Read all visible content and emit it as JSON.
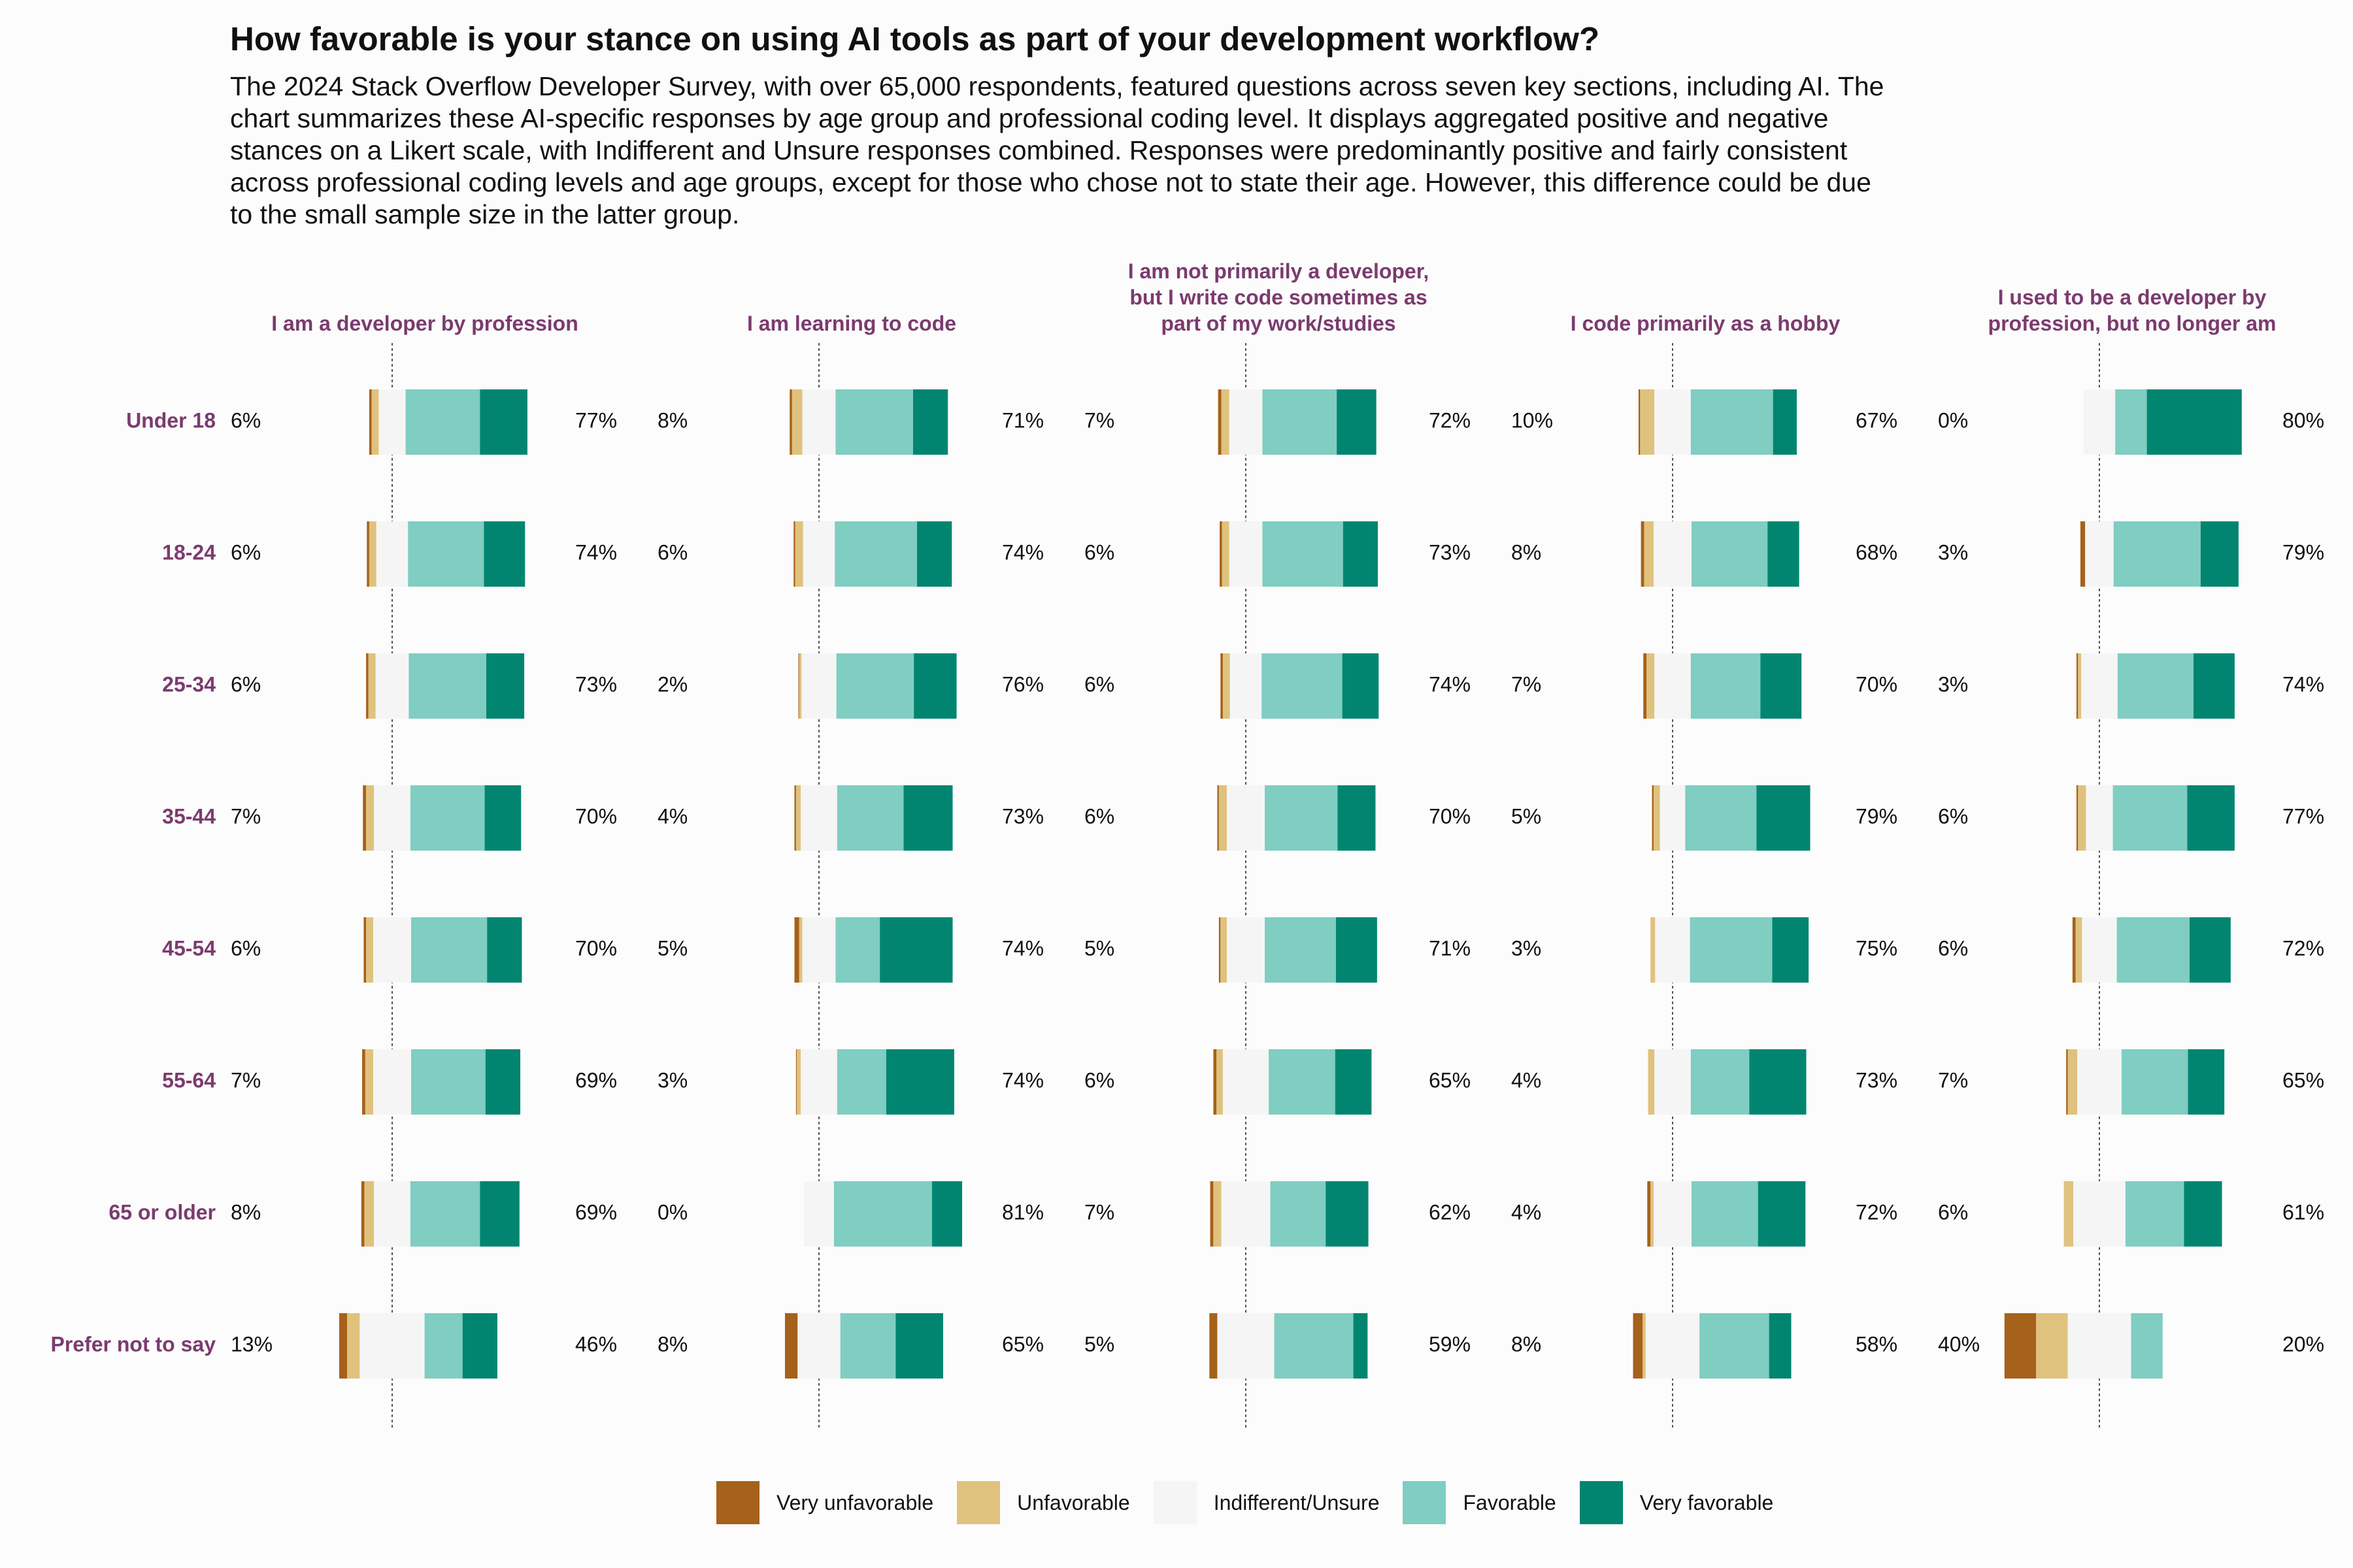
{
  "title": "How favorable is your stance on using AI tools as part of your development workflow?",
  "subtitle_lines": [
    "The 2024 Stack Overflow Developer Survey, with over 65,000 respondents, featured questions across seven key sections, including AI. The",
    "chart summarizes these AI-specific responses by age group and professional coding level. It displays aggregated positive and negative",
    "stances on a Likert scale, with Indifferent and Unsure responses combined. Responses were predominantly positive and fairly consistent",
    "across professional coding levels and age groups, except for those who chose not to state their age. However, this difference could be due",
    "to the small sample size in the latter group."
  ],
  "legend": [
    {
      "label": "Very unfavorable",
      "color": "#a6611a"
    },
    {
      "label": "Unfavorable",
      "color": "#dfc27d"
    },
    {
      "label": "Indifferent/Unsure",
      "color": "#f5f5f5"
    },
    {
      "label": "Favorable",
      "color": "#80cdc1"
    },
    {
      "label": "Very favorable",
      "color": "#018571"
    }
  ],
  "chart_data": {
    "type": "bar",
    "subtype": "diverging-stacked-likert",
    "facets": [
      "I am a developer by profession",
      "I am learning to code",
      "I am not primarily a developer,\nbut I write code sometimes as\npart of my work/studies",
      "I code primarily as a hobby",
      "I used to be a developer by\nprofession, but no longer am"
    ],
    "categories": [
      "Under 18",
      "18-24",
      "25-34",
      "35-44",
      "45-54",
      "55-64",
      "65 or older",
      "Prefer not to say"
    ],
    "series_order": [
      "Very unfavorable",
      "Unfavorable",
      "Indifferent/Unsure",
      "Favorable",
      "Very favorable"
    ],
    "data": [
      [
        {
          "neg": "6%",
          "pos": "77%",
          "values": [
            1.5,
            4.5,
            17,
            47,
            30
          ]
        },
        {
          "neg": "6%",
          "pos": "74%",
          "values": [
            1.5,
            4.5,
            20,
            48,
            26
          ]
        },
        {
          "neg": "6%",
          "pos": "73%",
          "values": [
            1.5,
            4.5,
            21,
            49,
            24
          ]
        },
        {
          "neg": "7%",
          "pos": "70%",
          "values": [
            2,
            5,
            23,
            47,
            23
          ]
        },
        {
          "neg": "6%",
          "pos": "70%",
          "values": [
            1.5,
            4.5,
            24,
            48,
            22
          ]
        },
        {
          "neg": "7%",
          "pos": "69%",
          "values": [
            2,
            5,
            24,
            47,
            22
          ]
        },
        {
          "neg": "8%",
          "pos": "69%",
          "values": [
            2,
            6,
            23,
            44,
            25
          ]
        },
        {
          "neg": "13%",
          "pos": "46%",
          "values": [
            5,
            8,
            41,
            24,
            22
          ]
        }
      ],
      [
        {
          "neg": "8%",
          "pos": "71%",
          "values": [
            1.5,
            6.5,
            21,
            49,
            22
          ]
        },
        {
          "neg": "6%",
          "pos": "74%",
          "values": [
            1,
            5,
            20,
            52,
            22
          ]
        },
        {
          "neg": "2%",
          "pos": "76%",
          "values": [
            0.5,
            1.5,
            22,
            49,
            27
          ]
        },
        {
          "neg": "4%",
          "pos": "73%",
          "values": [
            1,
            3,
            23,
            42,
            31
          ]
        },
        {
          "neg": "5%",
          "pos": "74%",
          "values": [
            3,
            2,
            21,
            28,
            46
          ]
        },
        {
          "neg": "3%",
          "pos": "74%",
          "values": [
            0.5,
            2.5,
            23,
            31,
            43
          ]
        },
        {
          "neg": "0%",
          "pos": "81%",
          "values": [
            0,
            0,
            19,
            62,
            19
          ]
        },
        {
          "neg": "8%",
          "pos": "65%",
          "values": [
            8,
            0,
            27,
            35,
            30
          ]
        }
      ],
      [
        {
          "neg": "7%",
          "pos": "72%",
          "values": [
            2,
            5,
            21,
            47,
            25
          ]
        },
        {
          "neg": "6%",
          "pos": "73%",
          "values": [
            1.5,
            4.5,
            21,
            51,
            22
          ]
        },
        {
          "neg": "6%",
          "pos": "74%",
          "values": [
            1.5,
            4.5,
            20,
            51,
            23
          ]
        },
        {
          "neg": "6%",
          "pos": "70%",
          "values": [
            1,
            5,
            24,
            46,
            24
          ]
        },
        {
          "neg": "5%",
          "pos": "71%",
          "values": [
            1,
            4,
            24,
            45,
            26
          ]
        },
        {
          "neg": "6%",
          "pos": "65%",
          "values": [
            2,
            4,
            29,
            42,
            23
          ]
        },
        {
          "neg": "7%",
          "pos": "62%",
          "values": [
            2,
            5,
            31,
            35,
            27
          ]
        },
        {
          "neg": "5%",
          "pos": "59%",
          "values": [
            5,
            0,
            36,
            50,
            9
          ]
        }
      ],
      [
        {
          "neg": "10%",
          "pos": "67%",
          "values": [
            1,
            9,
            23,
            52,
            15
          ]
        },
        {
          "neg": "8%",
          "pos": "68%",
          "values": [
            2,
            6,
            24,
            48,
            20
          ]
        },
        {
          "neg": "7%",
          "pos": "70%",
          "values": [
            2,
            5,
            23,
            44,
            26
          ]
        },
        {
          "neg": "5%",
          "pos": "79%",
          "values": [
            1,
            4,
            16,
            45,
            34
          ]
        },
        {
          "neg": "3%",
          "pos": "75%",
          "values": [
            0,
            3,
            22,
            52,
            23
          ]
        },
        {
          "neg": "4%",
          "pos": "73%",
          "values": [
            0,
            4,
            23,
            37,
            36
          ]
        },
        {
          "neg": "4%",
          "pos": "72%",
          "values": [
            2,
            2,
            24,
            42,
            30
          ]
        },
        {
          "neg": "8%",
          "pos": "58%",
          "values": [
            6,
            2,
            34,
            44,
            14
          ]
        }
      ],
      [
        {
          "neg": "0%",
          "pos": "80%",
          "values": [
            0,
            0,
            20,
            20,
            60
          ]
        },
        {
          "neg": "3%",
          "pos": "79%",
          "values": [
            3,
            0,
            18,
            55,
            24
          ]
        },
        {
          "neg": "3%",
          "pos": "74%",
          "values": [
            1,
            2,
            23,
            48,
            26
          ]
        },
        {
          "neg": "6%",
          "pos": "77%",
          "values": [
            1,
            5,
            17,
            47,
            30
          ]
        },
        {
          "neg": "6%",
          "pos": "72%",
          "values": [
            2,
            4,
            22,
            46,
            26
          ]
        },
        {
          "neg": "7%",
          "pos": "65%",
          "values": [
            1,
            6,
            28,
            42,
            23
          ]
        },
        {
          "neg": "6%",
          "pos": "61%",
          "values": [
            0,
            6,
            33,
            37,
            24
          ]
        },
        {
          "neg": "40%",
          "pos": "20%",
          "values": [
            20,
            20,
            40,
            20,
            0
          ]
        }
      ]
    ]
  }
}
